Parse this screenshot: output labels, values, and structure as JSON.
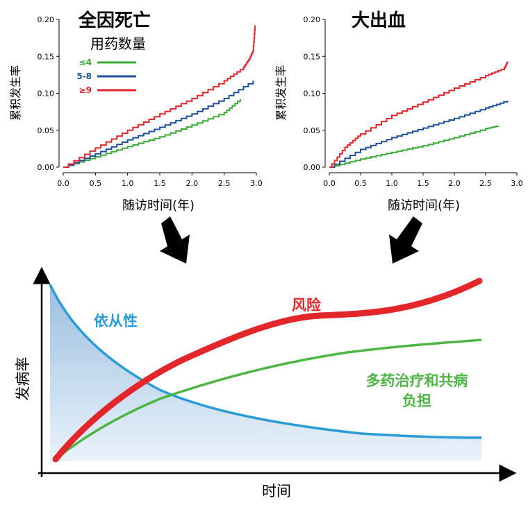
{
  "chart_data": [
    {
      "type": "line",
      "title": "全因死亡",
      "xlabel": "随访时间(年)",
      "ylabel": "累积发生率",
      "xlim": [
        0,
        3.0
      ],
      "ylim": [
        0,
        0.2
      ],
      "x_ticks": [
        "0.0",
        "0.5",
        "1.0",
        "1.5",
        "2.0",
        "2.5",
        "3.0"
      ],
      "y_ticks": [
        "0.00",
        "0.05",
        "0.10",
        "0.15",
        "0.20"
      ],
      "legend_title": "用药数量",
      "legend_position": "top-left",
      "series": [
        {
          "name": "≤4",
          "color": "#3aaa35",
          "x": [
            0,
            0.5,
            1.0,
            1.5,
            2.0,
            2.5,
            2.75
          ],
          "values": [
            0,
            0.014,
            0.028,
            0.041,
            0.057,
            0.074,
            0.092
          ]
        },
        {
          "name": "5-8",
          "color": "#1f4f9c",
          "x": [
            0,
            0.5,
            1.0,
            1.5,
            2.0,
            2.5,
            2.95
          ],
          "values": [
            0,
            0.018,
            0.037,
            0.054,
            0.072,
            0.093,
            0.117
          ]
        },
        {
          "name": "≥9",
          "color": "#e3262a",
          "x": [
            0,
            0.5,
            1.0,
            1.5,
            2.0,
            2.5,
            2.8,
            2.9,
            2.95,
            2.98
          ],
          "values": [
            0,
            0.026,
            0.05,
            0.072,
            0.093,
            0.117,
            0.135,
            0.148,
            0.158,
            0.192
          ]
        }
      ]
    },
    {
      "type": "line",
      "title": "大出血",
      "xlabel": "随访时间(年)",
      "ylabel": "累积发生率",
      "xlim": [
        0,
        3.0
      ],
      "ylim": [
        0,
        0.2
      ],
      "x_ticks": [
        "0.0",
        "0.5",
        "1.0",
        "1.5",
        "2.0",
        "2.5",
        "3.0"
      ],
      "y_ticks": [
        "0.00",
        "0.05",
        "0.10",
        "0.15",
        "0.20"
      ],
      "series": [
        {
          "name": "≤4",
          "color": "#3aaa35",
          "x": [
            0,
            0.5,
            1.0,
            1.5,
            2.0,
            2.5,
            2.7
          ],
          "values": [
            0,
            0.011,
            0.02,
            0.029,
            0.04,
            0.052,
            0.056
          ]
        },
        {
          "name": "5-8",
          "color": "#1f4f9c",
          "x": [
            0,
            0.5,
            1.0,
            1.5,
            2.0,
            2.5,
            2.85
          ],
          "values": [
            0,
            0.024,
            0.04,
            0.053,
            0.066,
            0.08,
            0.09
          ]
        },
        {
          "name": "≥9",
          "color": "#e3262a",
          "x": [
            0,
            0.25,
            0.5,
            1.0,
            1.5,
            2.0,
            2.5,
            2.8,
            2.85
          ],
          "values": [
            0,
            0.027,
            0.045,
            0.07,
            0.088,
            0.107,
            0.124,
            0.134,
            0.143
          ]
        }
      ]
    },
    {
      "type": "line",
      "xlabel": "时间",
      "ylabel": "发病率",
      "series": [
        {
          "name": "依从性",
          "color": "#2b9bd6"
        },
        {
          "name": "风险",
          "color": "#e3262a"
        },
        {
          "name": "多药治疗和共病负担",
          "color": "#4cb544"
        }
      ]
    }
  ]
}
